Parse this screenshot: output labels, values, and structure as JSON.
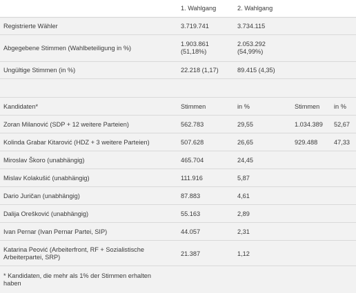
{
  "election": {
    "round_headers": [
      "1. Wahlgang",
      "2. Wahlgang"
    ],
    "rows": [
      {
        "label": "Registrierte Wähler",
        "r1": "3.719.741",
        "r2": "3.734.115"
      },
      {
        "label": "Abgegebene Stimmen (Wahlbeteiligung in %)",
        "r1_line1": "1.903.861",
        "r1_line2": "(51,18%)",
        "r2_line1": "2.053.292",
        "r2_line2": "(54,99%)"
      },
      {
        "label": "Ungültige Stimmen (in %)",
        "r1": "22.218 (1,17)",
        "r2": "89.415 (4,35)"
      }
    ]
  },
  "candidates": {
    "headers": [
      "Kandidaten*",
      "Stimmen",
      "in %",
      "Stimmen",
      "in %"
    ],
    "rows": [
      {
        "name": "Zoran Milanović (SDP + 12 weitere Parteien)",
        "votes1": "562.783",
        "pct1": "29,55",
        "votes2": "1.034.389",
        "pct2": "52,67"
      },
      {
        "name": "Kolinda Grabar Kitarović (HDZ + 3 weitere Parteien)",
        "votes1": "507.628",
        "pct1": "26,65",
        "votes2": "929.488",
        "pct2": "47,33"
      },
      {
        "name": "Miroslav Škoro (unabhängig)",
        "votes1": "465.704",
        "pct1": "24,45",
        "votes2": "",
        "pct2": ""
      },
      {
        "name": "Mislav Kolakušić (unabhängig)",
        "votes1": "111.916",
        "pct1": "5,87",
        "votes2": "",
        "pct2": ""
      },
      {
        "name": "Dario Juričan (unabhängig)",
        "votes1": "87.883",
        "pct1": "4,61",
        "votes2": "",
        "pct2": ""
      },
      {
        "name": "Dalija Orešković (unabhängig)",
        "votes1": "55.163",
        "pct1": "2,89",
        "votes2": "",
        "pct2": ""
      },
      {
        "name": "Ivan Pernar (Ivan Pernar Partei, SIP)",
        "votes1": "44.057",
        "pct1": "2,31",
        "votes2": "",
        "pct2": ""
      },
      {
        "name": "Katarina Peović (Arbeiterfront, RF + Sozialistische Arbeiterpartei, SRP)",
        "votes1": "21.387",
        "pct1": "1,12",
        "votes2": "",
        "pct2": ""
      }
    ]
  },
  "footnote": "* Kandidaten, die mehr als 1% der Stimmen erhalten haben"
}
